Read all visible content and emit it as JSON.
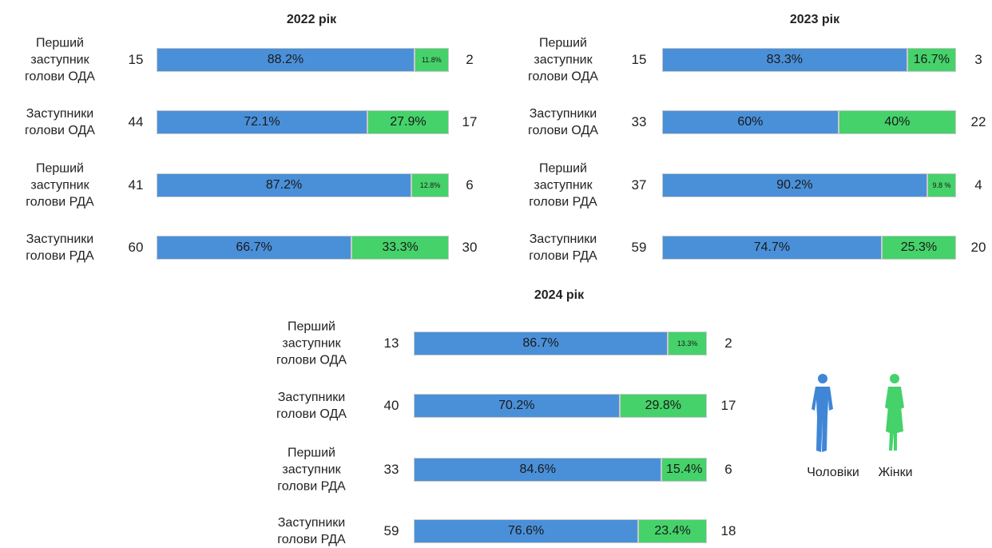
{
  "chart_data": [
    {
      "type": "bar",
      "title": "2022 рік",
      "categories": [
        "Перший заступник голови ОДА",
        "Заступники голови ОДА",
        "Перший заступник голови РДА",
        "Заступники голови РДА"
      ],
      "series": [
        {
          "color": "#4a90d9",
          "values": [
            88.2,
            72.1,
            87.2,
            66.7
          ],
          "value_labels": [
            "88.2%",
            "72.1%",
            "87.2%",
            "66.7%"
          ],
          "counts": [
            15,
            44,
            41,
            60
          ]
        },
        {
          "color": "#45d26a",
          "values": [
            11.8,
            27.9,
            12.8,
            33.3
          ],
          "value_labels": [
            "11.8%",
            "27.9%",
            "12.8%",
            "33.3%"
          ],
          "counts": [
            2,
            17,
            6,
            30
          ]
        }
      ]
    },
    {
      "type": "bar",
      "title": "2023 рік",
      "categories": [
        "Перший заступник голови ОДА",
        "Заступники голови ОДА",
        "Перший заступник голови РДА",
        "Заступники голови РДА"
      ],
      "series": [
        {
          "color": "#4a90d9",
          "values": [
            83.3,
            60,
            90.2,
            74.7
          ],
          "value_labels": [
            "83.3%",
            "60%",
            "90.2%",
            "74.7%"
          ],
          "counts": [
            15,
            33,
            37,
            59
          ]
        },
        {
          "color": "#45d26a",
          "values": [
            16.7,
            40,
            9.8,
            25.3
          ],
          "value_labels": [
            "16.7%",
            "40%",
            "9.8 %",
            "25.3%"
          ],
          "counts": [
            3,
            22,
            4,
            20
          ]
        }
      ]
    },
    {
      "type": "bar",
      "title": "2024 рік",
      "categories": [
        "Перший заступник голови ОДА",
        "Заступники голови ОДА",
        "Перший заступник голови РДА",
        "Заступники голови РДА"
      ],
      "series": [
        {
          "name": "Чоловіки",
          "color": "#4a90d9",
          "values": [
            86.7,
            70.2,
            84.6,
            76.6
          ],
          "value_labels": [
            "86.7%",
            "70.2%",
            "84.6%",
            "76.6%"
          ],
          "counts": [
            13,
            40,
            33,
            59
          ]
        },
        {
          "name": "Жінки",
          "color": "#45d26a",
          "values": [
            13.3,
            29.8,
            15.4,
            23.4
          ],
          "value_labels": [
            "13.3%",
            "29.8%",
            "15.4%",
            "23.4%"
          ],
          "counts": [
            2,
            17,
            6,
            18
          ]
        }
      ]
    }
  ]
}
